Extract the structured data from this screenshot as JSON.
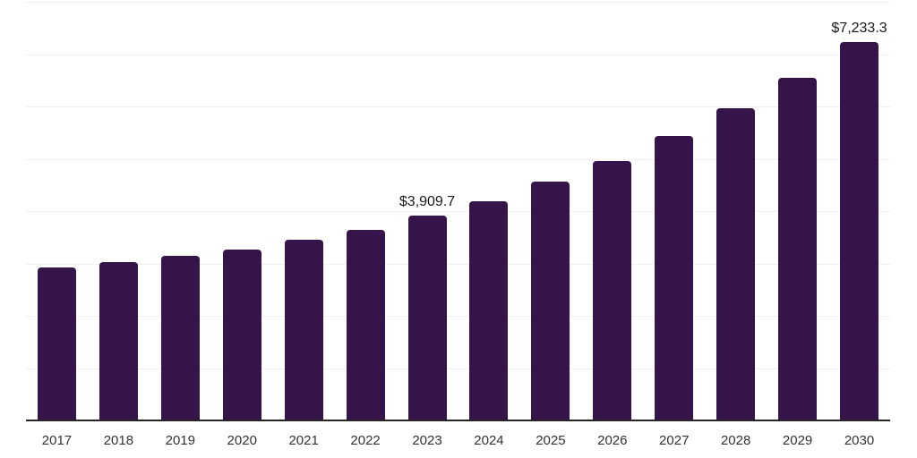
{
  "chart_data": {
    "type": "bar",
    "title": "",
    "xlabel": "",
    "ylabel": "",
    "categories": [
      "2017",
      "2018",
      "2019",
      "2020",
      "2021",
      "2022",
      "2023",
      "2024",
      "2025",
      "2026",
      "2027",
      "2028",
      "2029",
      "2030"
    ],
    "values": [
      2925,
      3030,
      3145,
      3260,
      3445,
      3645,
      3909.7,
      4190,
      4560,
      4955,
      5430,
      5960,
      6550,
      7233.3
    ],
    "data_labels": [
      null,
      null,
      null,
      null,
      null,
      null,
      "$3,909.7",
      null,
      null,
      null,
      null,
      null,
      null,
      "$7,233.3"
    ],
    "ylim": [
      0,
      8000
    ],
    "gridline_step": 1000,
    "grid": true,
    "legend": false,
    "y_tick_labels_visible": false,
    "colors": {
      "bar": "#35144A",
      "gridline": "#f0f0f0",
      "axis": "#262626",
      "x_tick_label": "#333333",
      "data_label": "#1a1a1a"
    }
  }
}
